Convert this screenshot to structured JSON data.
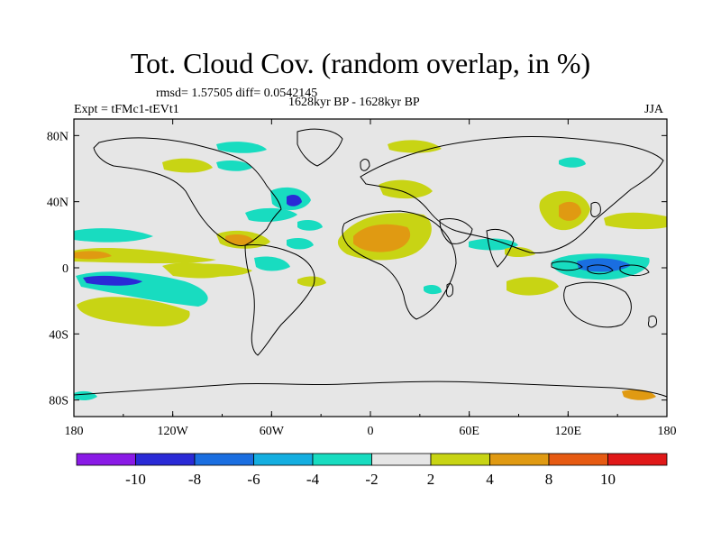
{
  "header": {
    "title": "Tot. Cloud Cov. (random overlap, in %)",
    "stats": "rmsd= 1.57505 diff= 0.0542145",
    "experiment": "Expt = tFMc1-tEVt1",
    "period": "1628kyr BP - 1628kyr BP",
    "season": "JJA"
  },
  "axes": {
    "lon_labels": [
      "180",
      "120W",
      "60W",
      "0",
      "60E",
      "120E",
      "180"
    ],
    "lat_labels": [
      "80N",
      "40N",
      "0",
      "40S",
      "80S"
    ]
  },
  "colorbar": {
    "labels": [
      "-10",
      "-8",
      "-6",
      "-4",
      "-2",
      "2",
      "4",
      "8",
      "10"
    ],
    "colors": [
      "#8a1ae6",
      "#2a2ad6",
      "#1a6ee0",
      "#14aee0",
      "#18dcc0",
      "#e6e6e6",
      "#c8d414",
      "#e09a12",
      "#e65a12",
      "#e01818"
    ]
  },
  "palette": {
    "land_background": "#e6e6e6",
    "coast": "#000000"
  }
}
